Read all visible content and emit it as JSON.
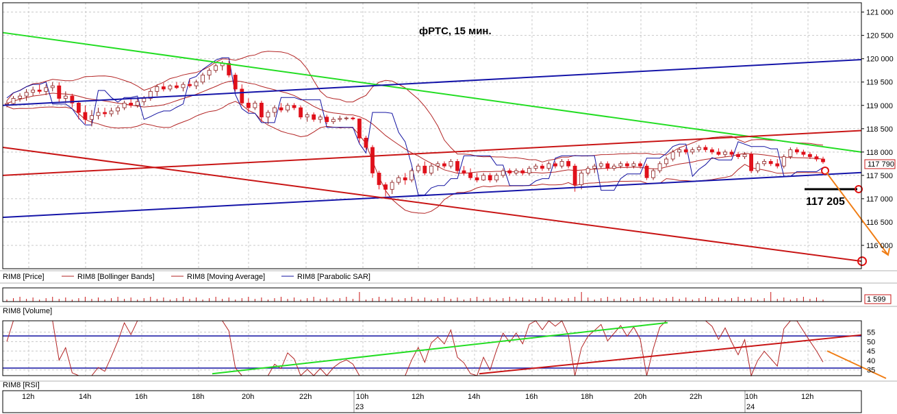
{
  "chart_data": {
    "type": "candlestick",
    "title": "фРТС, 15 мин.",
    "instrument": "RIM8",
    "price_panel": {
      "ylim": [
        115500,
        121200
      ],
      "y_ticks": [
        "121 000",
        "120 500",
        "120 000",
        "119 500",
        "119 000",
        "118 500",
        "118 000",
        "117 500",
        "117 000",
        "116 500",
        "116 000"
      ],
      "last_price_label": "117 790",
      "last_price": 117790,
      "target_label": "117 205",
      "target_price": 117205,
      "candles": [
        [
          119020,
          119100,
          118960,
          119040
        ],
        [
          119040,
          119200,
          119000,
          119150
        ],
        [
          119150,
          119260,
          119080,
          119200
        ],
        [
          119200,
          119350,
          119100,
          119280
        ],
        [
          119280,
          119400,
          119200,
          119330
        ],
        [
          119330,
          119450,
          119250,
          119300
        ],
        [
          119300,
          119450,
          119220,
          119380
        ],
        [
          119380,
          119500,
          119300,
          119420
        ],
        [
          119420,
          119500,
          119050,
          119150
        ],
        [
          119150,
          119300,
          119050,
          119200
        ],
        [
          119200,
          119250,
          118950,
          119050
        ],
        [
          119050,
          119100,
          118700,
          118850
        ],
        [
          118850,
          119000,
          118600,
          118700
        ],
        [
          118700,
          118900,
          118550,
          118780
        ],
        [
          118780,
          118950,
          118700,
          118850
        ],
        [
          118850,
          118950,
          118750,
          118820
        ],
        [
          118820,
          118950,
          118760,
          118880
        ],
        [
          118880,
          119000,
          118800,
          118950
        ],
        [
          118950,
          119100,
          118900,
          119050
        ],
        [
          119050,
          119150,
          118950,
          119000
        ],
        [
          119000,
          119150,
          118950,
          119080
        ],
        [
          119080,
          119200,
          119000,
          119150
        ],
        [
          119150,
          119350,
          119100,
          119300
        ],
        [
          119300,
          119450,
          119200,
          119400
        ],
        [
          119400,
          119480,
          119300,
          119350
        ],
        [
          119350,
          119450,
          119300,
          119420
        ],
        [
          119420,
          119500,
          119350,
          119380
        ],
        [
          119380,
          119500,
          119300,
          119450
        ],
        [
          119450,
          119550,
          119380,
          119420
        ],
        [
          119420,
          119550,
          119350,
          119500
        ],
        [
          119500,
          119700,
          119450,
          119650
        ],
        [
          119650,
          119800,
          119550,
          119750
        ],
        [
          119750,
          119900,
          119700,
          119850
        ],
        [
          119850,
          119950,
          119750,
          119900
        ],
        [
          119900,
          119950,
          119600,
          119650
        ],
        [
          119650,
          119700,
          119300,
          119350
        ],
        [
          119350,
          119450,
          119000,
          119050
        ],
        [
          119050,
          119150,
          118850,
          118950
        ],
        [
          118950,
          119100,
          118900,
          119050
        ],
        [
          119050,
          119100,
          118650,
          118750
        ],
        [
          118750,
          118900,
          118600,
          118850
        ],
        [
          118850,
          119000,
          118750,
          118950
        ],
        [
          118950,
          119050,
          118850,
          118900
        ],
        [
          118900,
          119050,
          118850,
          119000
        ],
        [
          119000,
          119050,
          118900,
          118950
        ],
        [
          118950,
          119000,
          118700,
          118750
        ],
        [
          118750,
          118850,
          118650,
          118800
        ],
        [
          118800,
          118850,
          118650,
          118700
        ],
        [
          118700,
          118800,
          118620,
          118750
        ],
        [
          118750,
          118800,
          118600,
          118650
        ],
        [
          118650,
          118750,
          118600,
          118700
        ],
        [
          118700,
          118780,
          118650,
          118720
        ],
        [
          118720,
          118760,
          118680,
          118730
        ],
        [
          118730,
          118760,
          118680,
          118710
        ],
        [
          118710,
          118720,
          118200,
          118300
        ],
        [
          118300,
          118350,
          118050,
          118100
        ],
        [
          118100,
          118150,
          117450,
          117550
        ],
        [
          117550,
          117600,
          117200,
          117300
        ],
        [
          117300,
          117350,
          117050,
          117200
        ],
        [
          117200,
          117400,
          117100,
          117350
        ],
        [
          117350,
          117500,
          117300,
          117450
        ],
        [
          117450,
          117550,
          117300,
          117400
        ],
        [
          117400,
          117650,
          117350,
          117600
        ],
        [
          117600,
          117750,
          117550,
          117700
        ],
        [
          117700,
          117800,
          117500,
          117550
        ],
        [
          117550,
          117750,
          117500,
          117700
        ],
        [
          117700,
          117800,
          117600,
          117750
        ],
        [
          117750,
          117800,
          117650,
          117700
        ],
        [
          117700,
          117850,
          117650,
          117800
        ],
        [
          117800,
          117850,
          117550,
          117600
        ],
        [
          117600,
          117700,
          117500,
          117550
        ],
        [
          117550,
          117650,
          117400,
          117450
        ],
        [
          117450,
          117550,
          117350,
          117400
        ],
        [
          117400,
          117550,
          117380,
          117500
        ],
        [
          117500,
          117550,
          117350,
          117400
        ],
        [
          117400,
          117550,
          117350,
          117500
        ],
        [
          117500,
          117650,
          117450,
          117600
        ],
        [
          117600,
          117650,
          117500,
          117550
        ],
        [
          117550,
          117650,
          117500,
          117600
        ],
        [
          117600,
          117650,
          117500,
          117550
        ],
        [
          117550,
          117700,
          117500,
          117650
        ],
        [
          117650,
          117750,
          117600,
          117700
        ],
        [
          117700,
          117750,
          117600,
          117650
        ],
        [
          117650,
          117800,
          117600,
          117750
        ],
        [
          117750,
          117800,
          117650,
          117700
        ],
        [
          117700,
          117850,
          117650,
          117800
        ],
        [
          117800,
          117850,
          117650,
          117700
        ],
        [
          117700,
          117750,
          117150,
          117300
        ],
        [
          117300,
          117600,
          117200,
          117550
        ],
        [
          117550,
          117700,
          117500,
          117650
        ],
        [
          117650,
          117750,
          117550,
          117700
        ],
        [
          117700,
          117800,
          117650,
          117750
        ],
        [
          117750,
          117800,
          117600,
          117650
        ],
        [
          117650,
          117750,
          117600,
          117700
        ],
        [
          117700,
          117800,
          117650,
          117750
        ],
        [
          117750,
          117800,
          117650,
          117700
        ],
        [
          117700,
          117800,
          117650,
          117750
        ],
        [
          117750,
          117800,
          117650,
          117700
        ],
        [
          117700,
          117750,
          117400,
          117450
        ],
        [
          117450,
          117650,
          117400,
          117600
        ],
        [
          117600,
          117800,
          117550,
          117750
        ],
        [
          117750,
          117900,
          117700,
          117850
        ],
        [
          117850,
          118050,
          117800,
          118000
        ],
        [
          118000,
          118100,
          117900,
          118050
        ],
        [
          118050,
          118100,
          117950,
          118000
        ],
        [
          118000,
          118100,
          117950,
          118050
        ],
        [
          118050,
          118150,
          118000,
          118100
        ],
        [
          118100,
          118150,
          118000,
          118050
        ],
        [
          118050,
          118100,
          117950,
          118000
        ],
        [
          118000,
          118080,
          117920,
          117950
        ],
        [
          117950,
          118050,
          117900,
          118000
        ],
        [
          118000,
          118050,
          117900,
          117950
        ],
        [
          117950,
          118000,
          117850,
          117900
        ],
        [
          117900,
          118000,
          117850,
          117950
        ],
        [
          117950,
          118000,
          117550,
          117600
        ],
        [
          117600,
          117800,
          117550,
          117750
        ],
        [
          117750,
          117850,
          117700,
          117800
        ],
        [
          117800,
          117850,
          117700,
          117750
        ],
        [
          117750,
          117850,
          117650,
          117700
        ],
        [
          117700,
          117950,
          117650,
          117900
        ],
        [
          117900,
          118100,
          117850,
          118050
        ],
        [
          118050,
          118100,
          117950,
          118000
        ],
        [
          118000,
          118050,
          117900,
          117950
        ],
        [
          117950,
          118000,
          117850,
          117900
        ],
        [
          117900,
          117950,
          117800,
          117850
        ],
        [
          117850,
          117900,
          117750,
          117790
        ]
      ]
    },
    "volume_panel": {
      "label": "RIM8 [Volume]",
      "last_value_label": "1 599"
    },
    "rsi_panel": {
      "label": "RIM8 [RSI]",
      "ylim": [
        32,
        61
      ],
      "y_ticks": [
        55,
        50,
        45,
        40,
        35
      ],
      "levels": [
        53,
        36
      ]
    },
    "x_axis": {
      "ticks": [
        "12h",
        "14h",
        "16h",
        "18h",
        "20h",
        "22h",
        "10h",
        "12h",
        "14h",
        "16h",
        "18h",
        "20h",
        "22h",
        "10h",
        "12h"
      ],
      "dates": [
        "23",
        "24"
      ]
    },
    "legend": [
      {
        "name": "RIM8 [Price]",
        "color": "#000000"
      },
      {
        "name": "RIM8 [Bollinger Bands]",
        "color": "#b22222"
      },
      {
        "name": "RIM8 [Moving Average]",
        "color": "#b22222"
      },
      {
        "name": "RIM8 [Parabolic SAR]",
        "color": "#1010a0"
      }
    ],
    "colors": {
      "candle_up": "#ffffff",
      "candle_down": "#e0101a",
      "bollinger": "#b22222",
      "sar": "#1010a0",
      "channel_blue": "#1414a8",
      "channel_red": "#c81414",
      "trend_green": "#22dd22",
      "forecast": "#f07d14"
    }
  }
}
